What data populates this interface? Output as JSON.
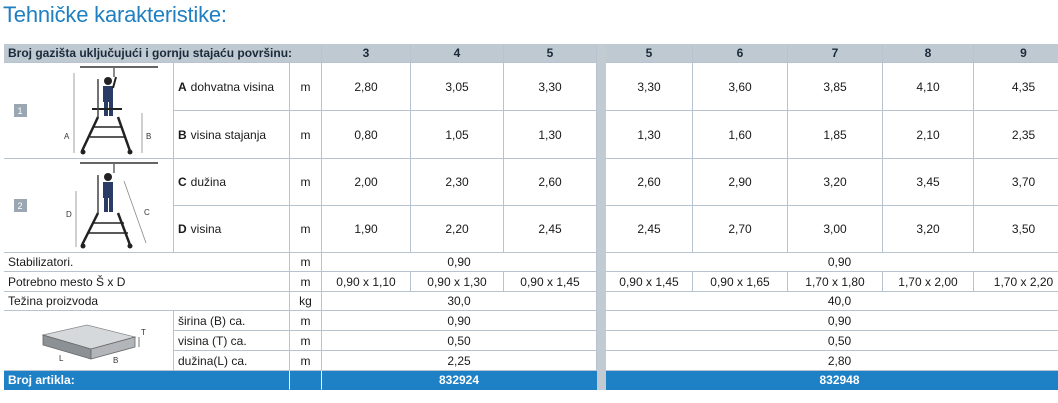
{
  "title": "Tehničke karakteristike:",
  "header": {
    "label": "Broj gazišta uključujući i gornju stajaću površinu:",
    "cols": [
      "3",
      "4",
      "5",
      "5",
      "6",
      "7",
      "8",
      "9"
    ]
  },
  "rows": {
    "a": {
      "letter": "A",
      "label": "dohvatna visina",
      "unit": "m",
      "values": [
        "2,80",
        "3,05",
        "3,30",
        "3,30",
        "3,60",
        "3,85",
        "4,10",
        "4,35"
      ]
    },
    "b": {
      "letter": "B",
      "label": "visina stajanja",
      "unit": "m",
      "values": [
        "0,80",
        "1,05",
        "1,30",
        "1,30",
        "1,60",
        "1,85",
        "2,10",
        "2,35"
      ]
    },
    "c": {
      "letter": "C",
      "label": "dužina",
      "unit": "m",
      "values": [
        "2,00",
        "2,30",
        "2,60",
        "2,60",
        "2,90",
        "3,20",
        "3,45",
        "3,70"
      ]
    },
    "d": {
      "letter": "D",
      "label": "visina",
      "unit": "m",
      "values": [
        "1,90",
        "2,20",
        "2,45",
        "2,45",
        "2,70",
        "3,00",
        "3,20",
        "3,50"
      ]
    },
    "stab": {
      "label": "Stabilizatori.",
      "unit": "m",
      "left": "0,90",
      "right": "0,90"
    },
    "space": {
      "label": "Potrebno mesto Š x D",
      "unit": "m",
      "values": [
        "0,90 x 1,10",
        "0,90 x 1,30",
        "0,90 x 1,45",
        "0,90 x 1,45",
        "0,90 x 1,65",
        "1,70 x 1,80",
        "1,70 x 2,00",
        "1,70 x 2,20"
      ]
    },
    "weight": {
      "label": "Težina proizvoda",
      "unit": "kg",
      "left": "30,0",
      "right": "40,0"
    },
    "width": {
      "label": "širina (B) ca.",
      "unit": "m",
      "left": "0,90",
      "right": "0,90"
    },
    "height": {
      "label": "visina (T) ca.",
      "unit": "m",
      "left": "0,50",
      "right": "0,50"
    },
    "length": {
      "label": "dužina(L) ca.",
      "unit": "m",
      "left": "2,25",
      "right": "2,80"
    }
  },
  "badges": {
    "one": "1",
    "two": "2"
  },
  "diagram_labels": {
    "a": "A",
    "b": "B",
    "c": "C",
    "d": "D",
    "t": "T",
    "l": "L",
    "b2": "B"
  },
  "article": {
    "label": "Broj artikla:",
    "left": "832924",
    "right": "832948"
  },
  "colors": {
    "accent": "#1e81c6",
    "header": "#bfc9d2",
    "grid": "#b7c4cf"
  }
}
